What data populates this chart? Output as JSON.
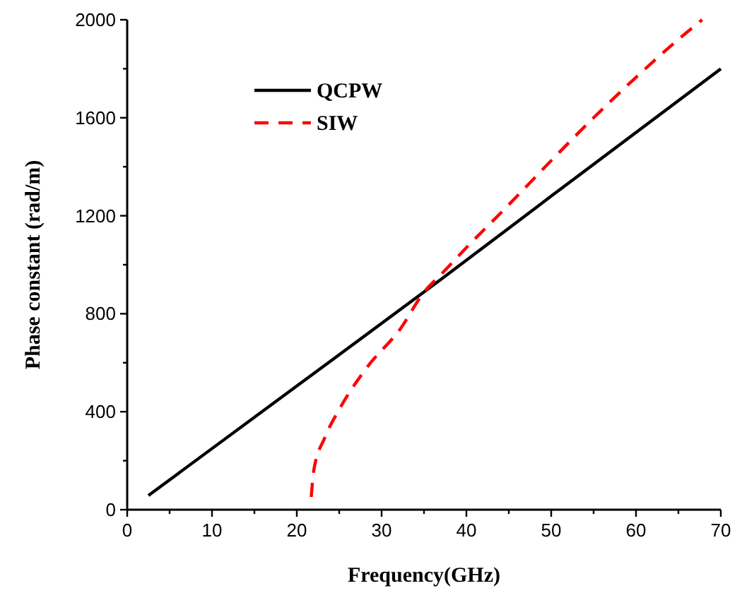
{
  "chart_data": {
    "type": "line",
    "xlabel": "Frequency(GHz)",
    "ylabel": "Phase constant (rad/m)",
    "xlim": [
      0,
      70
    ],
    "ylim": [
      0,
      2000
    ],
    "xticks": [
      0,
      {
        "value": 5,
        "label": null
      },
      10,
      {
        "value": 15,
        "label": null
      },
      20,
      {
        "value": 25,
        "label": null
      },
      30,
      {
        "value": 35,
        "label": null
      },
      40,
      {
        "value": 45,
        "label": null
      },
      50,
      {
        "value": 55,
        "label": null
      },
      60,
      {
        "value": 65,
        "label": null
      },
      70
    ],
    "yticks": [
      0,
      {
        "value": 200,
        "label": null
      },
      400,
      {
        "value": 600,
        "label": null
      },
      800,
      {
        "value": 1000,
        "label": null
      },
      1200,
      {
        "value": 1400,
        "label": null
      },
      1600,
      {
        "value": 1800,
        "label": null
      },
      2000
    ],
    "grid": false,
    "legend": "top left",
    "marker": "none",
    "series": [
      {
        "name": "QCPW",
        "color": "#000000",
        "line_style": "solid",
        "x": [
          2.5,
          20,
          37,
          50,
          70
        ],
        "values": [
          58,
          505,
          940,
          1280,
          1800
        ]
      },
      {
        "name": "SIW",
        "color": "#ff0000",
        "line_style": "dashed",
        "x": [
          21.7,
          22,
          23.3,
          25,
          28.3,
          32.2,
          35,
          37,
          40,
          45,
          50,
          55,
          60,
          65,
          67.8
        ],
        "values": [
          52,
          160,
          294,
          409,
          582,
          738,
          888,
          960,
          1070,
          1245,
          1425,
          1600,
          1765,
          1920,
          2000
        ]
      }
    ]
  }
}
